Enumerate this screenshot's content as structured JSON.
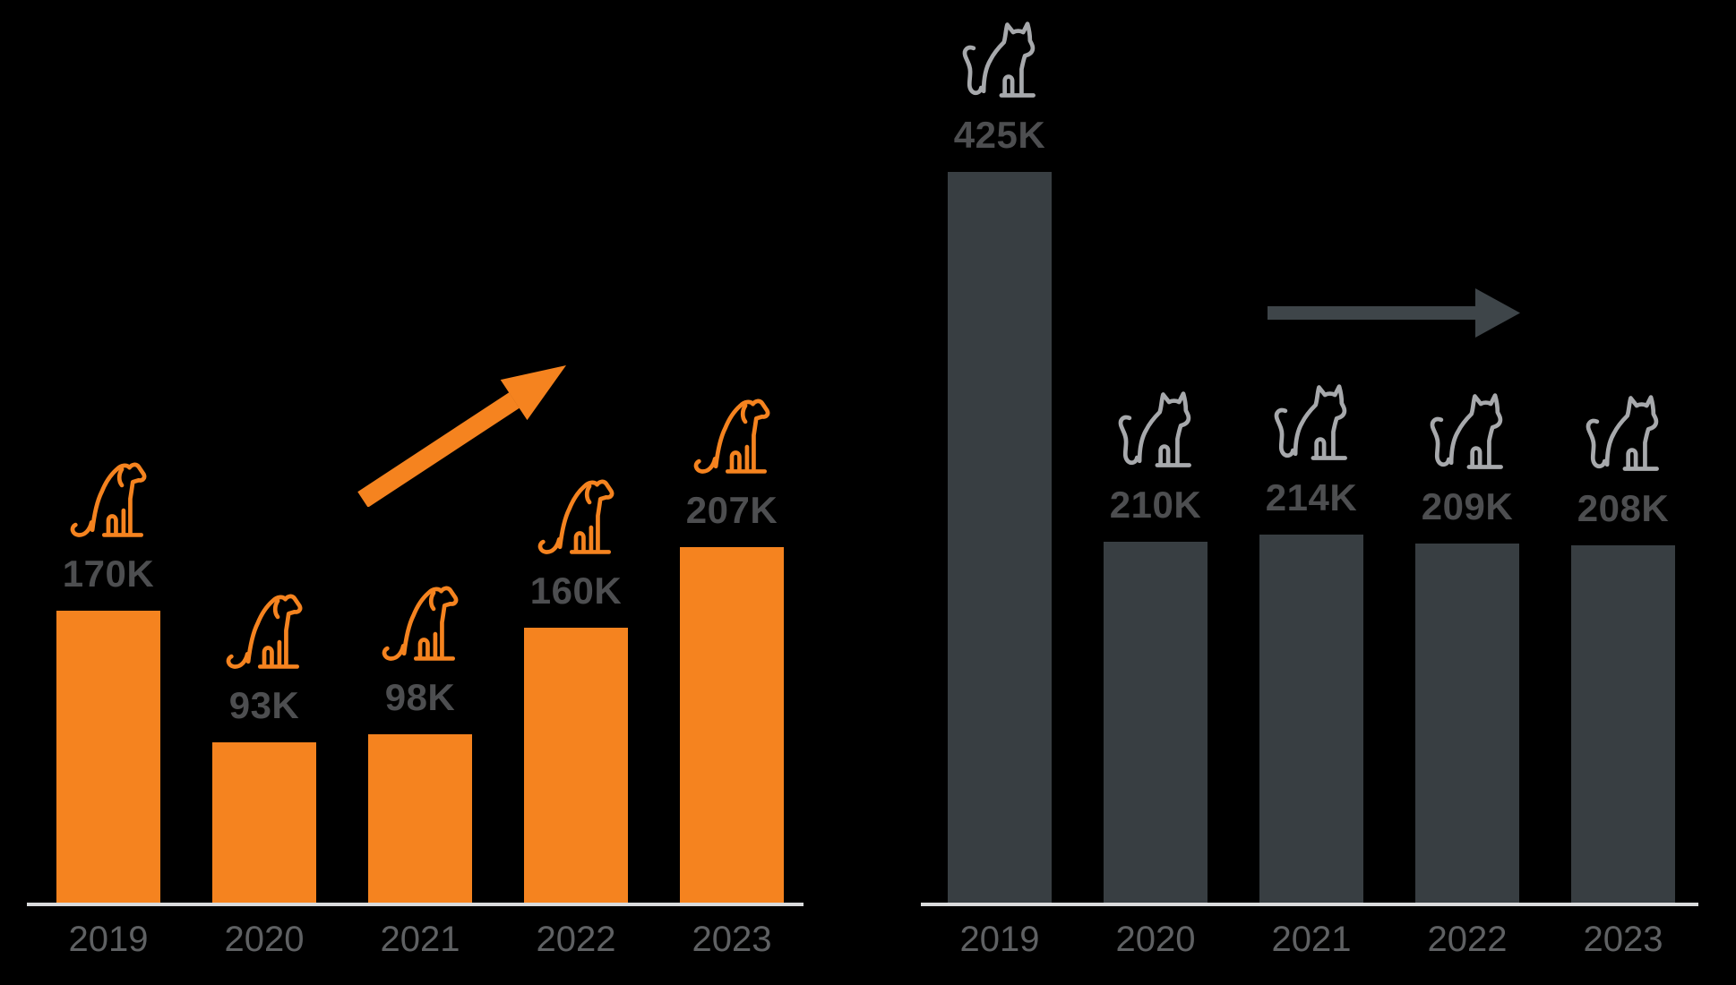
{
  "background_color": "#000000",
  "axis_color": "#DADBDC",
  "value_label_color": "#4D4E50",
  "year_label_color": "#5F6163",
  "chart_data": [
    {
      "type": "bar",
      "id": "dogs",
      "title": "",
      "xlabel": "",
      "ylabel": "",
      "icon": "dog-icon",
      "icon_color": "#F5831F",
      "bar_color": "#F5831F",
      "trend_arrow": {
        "direction": "up-right",
        "color": "#F5831F"
      },
      "categories": [
        "2019",
        "2020",
        "2021",
        "2022",
        "2023"
      ],
      "values": [
        170000,
        93000,
        98000,
        160000,
        207000
      ],
      "value_labels": [
        "170K",
        "93K",
        "98K",
        "160K",
        "207K"
      ],
      "ylim": [
        0,
        450000
      ],
      "grid": false,
      "legend": false
    },
    {
      "type": "bar",
      "id": "cats",
      "title": "",
      "xlabel": "",
      "ylabel": "",
      "icon": "cat-icon",
      "icon_color": "#A7A9AC",
      "bar_color": "#383E42",
      "trend_arrow": {
        "direction": "right",
        "color": "#3E4549"
      },
      "categories": [
        "2019",
        "2020",
        "2021",
        "2022",
        "2023"
      ],
      "values": [
        425000,
        210000,
        214000,
        209000,
        208000
      ],
      "value_labels": [
        "425K",
        "210K",
        "214K",
        "209K",
        "208K"
      ],
      "ylim": [
        0,
        450000
      ],
      "grid": false,
      "legend": false
    }
  ]
}
